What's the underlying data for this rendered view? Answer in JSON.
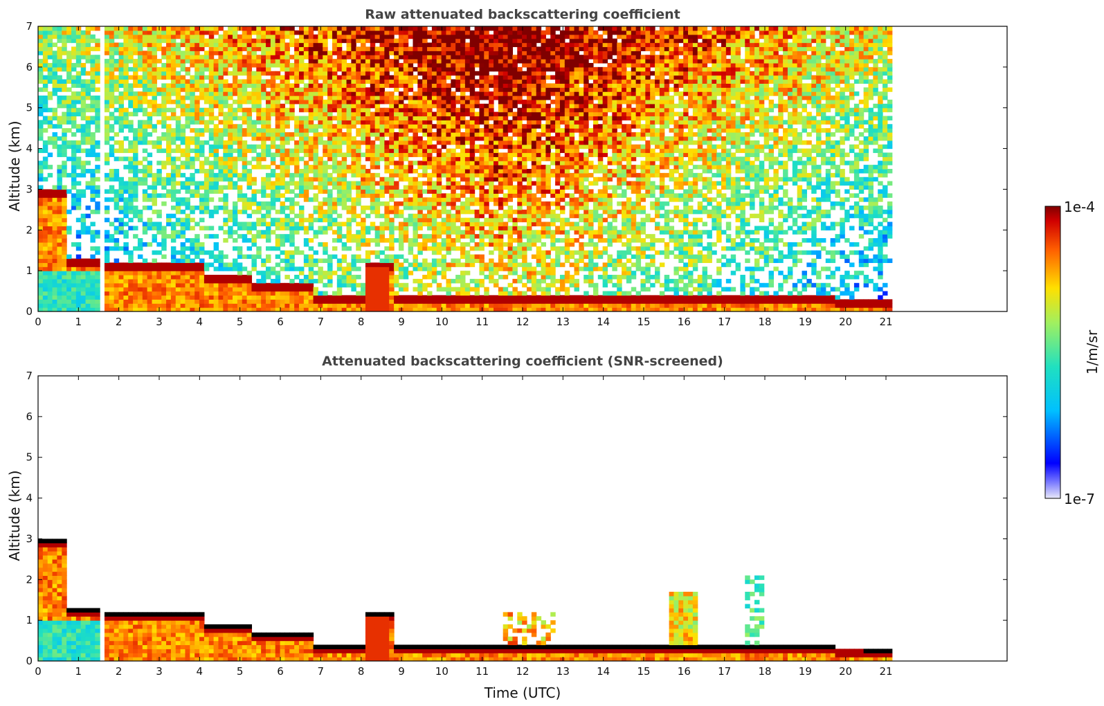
{
  "chart_data": [
    {
      "type": "heatmap",
      "title": "Raw attenuated backscattering coefficient",
      "xlabel": "",
      "ylabel": "Altitude (km)",
      "xlim": [
        0,
        24
      ],
      "ylim": [
        0,
        7
      ],
      "x_ticks": [
        0,
        1,
        2,
        3,
        4,
        5,
        6,
        7,
        8,
        9,
        10,
        11,
        12,
        13,
        14,
        15,
        16,
        17,
        18,
        19,
        20,
        21
      ],
      "x_tick_labels": [
        "0",
        "1",
        "2",
        "3",
        "4",
        "5",
        "6",
        "7",
        "8",
        "9",
        "10",
        "11",
        "12",
        "13",
        "14",
        "15",
        "16",
        "17",
        "18",
        "19",
        "20",
        "21"
      ],
      "y_ticks": [
        0,
        1,
        2,
        3,
        4,
        5,
        6,
        7
      ],
      "y_tick_labels": [
        "0",
        "1",
        "2",
        "3",
        "4",
        "5",
        "6",
        "7"
      ],
      "data_time_range": [
        0,
        21.15
      ],
      "grid": false,
      "screened": false
    },
    {
      "type": "heatmap",
      "title": "Attenuated backscattering coefficient (SNR-screened)",
      "xlabel": "Time (UTC)",
      "ylabel": "Altitude (km)",
      "xlim": [
        0,
        24
      ],
      "ylim": [
        0,
        7
      ],
      "x_ticks": [
        0,
        1,
        2,
        3,
        4,
        5,
        6,
        7,
        8,
        9,
        10,
        11,
        12,
        13,
        14,
        15,
        16,
        17,
        18,
        19,
        20,
        21
      ],
      "x_tick_labels": [
        "0",
        "1",
        "2",
        "3",
        "4",
        "5",
        "6",
        "7",
        "8",
        "9",
        "10",
        "11",
        "12",
        "13",
        "14",
        "15",
        "16",
        "17",
        "18",
        "19",
        "20",
        "21"
      ],
      "y_ticks": [
        0,
        1,
        2,
        3,
        4,
        5,
        6,
        7
      ],
      "y_tick_labels": [
        "0",
        "1",
        "2",
        "3",
        "4",
        "5",
        "6",
        "7"
      ],
      "data_time_range": [
        0,
        21.15
      ],
      "grid": false,
      "screened": true
    }
  ],
  "colorbar": {
    "label": "1/m/sr",
    "max_label": "1e-4",
    "min_label": "1e-7",
    "colormap": "jet",
    "scale": "log"
  }
}
